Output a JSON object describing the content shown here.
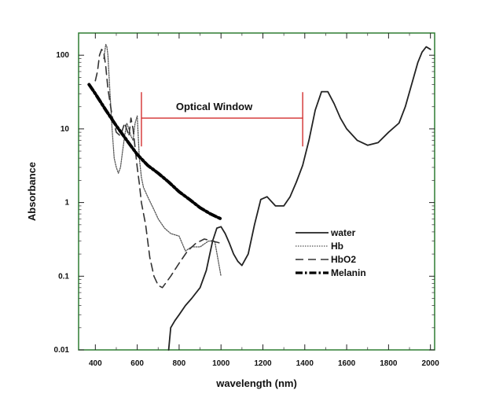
{
  "chart_data": {
    "type": "line",
    "xlabel": "wavelength (nm)",
    "ylabel": "Absorbance",
    "x_scale": "linear",
    "y_scale": "log",
    "xlim": [
      320,
      2020
    ],
    "ylim": [
      0.01,
      200
    ],
    "x_ticks": [
      400,
      600,
      800,
      1000,
      1200,
      1400,
      1600,
      1800,
      2000
    ],
    "y_ticks": [
      0.01,
      0.1,
      1,
      10,
      100
    ],
    "y_tick_labels": [
      "0.01",
      "0.1",
      "1",
      "10",
      "100"
    ],
    "grid": false,
    "frame_color": "#2e7d32",
    "legend_position": "center-right",
    "annotation": {
      "text": "Optical Window",
      "x_start": 620,
      "x_end": 1390,
      "y_level": 14,
      "color": "#d32f2f"
    },
    "series": [
      {
        "name": "water",
        "style": "solid",
        "color": "#222222",
        "x": [
          750,
          760,
          780,
          800,
          830,
          860,
          900,
          930,
          960,
          980,
          1000,
          1020,
          1040,
          1060,
          1080,
          1100,
          1130,
          1160,
          1190,
          1220,
          1260,
          1300,
          1330,
          1360,
          1390,
          1420,
          1450,
          1480,
          1510,
          1540,
          1570,
          1600,
          1650,
          1700,
          1750,
          1800,
          1850,
          1880,
          1910,
          1940,
          1960,
          1980,
          2000
        ],
        "y": [
          0.01,
          0.02,
          0.025,
          0.03,
          0.04,
          0.05,
          0.07,
          0.12,
          0.3,
          0.45,
          0.47,
          0.38,
          0.28,
          0.2,
          0.16,
          0.14,
          0.2,
          0.5,
          1.1,
          1.2,
          0.9,
          0.9,
          1.2,
          1.9,
          3.2,
          7,
          18,
          32,
          32,
          22,
          14,
          10,
          7,
          6,
          6.5,
          9,
          12,
          20,
          40,
          80,
          110,
          130,
          120
        ]
      },
      {
        "name": "Hb",
        "style": "dotted",
        "color": "#555555",
        "x": [
          440,
          450,
          455,
          460,
          470,
          480,
          490,
          500,
          510,
          520,
          530,
          540,
          550,
          560,
          570,
          580,
          590,
          600,
          610,
          620,
          630,
          650,
          680,
          700,
          730,
          760,
          800,
          830,
          860,
          900,
          940,
          970,
          1000
        ],
        "y": [
          90,
          140,
          130,
          100,
          30,
          10,
          4,
          3,
          2.5,
          3,
          5,
          8,
          12,
          10,
          8,
          7,
          12,
          15,
          4,
          2.2,
          1.6,
          1.2,
          0.8,
          0.6,
          0.45,
          0.38,
          0.35,
          0.22,
          0.25,
          0.25,
          0.3,
          0.3,
          0.1
        ]
      },
      {
        "name": "HbO2",
        "style": "dashed",
        "color": "#333333",
        "x": [
          400,
          410,
          420,
          430,
          440,
          450,
          460,
          480,
          500,
          520,
          540,
          560,
          570,
          580,
          600,
          610,
          620,
          640,
          660,
          680,
          700,
          720,
          760,
          800,
          840,
          880,
          920,
          960,
          1000
        ],
        "y": [
          45,
          60,
          100,
          120,
          110,
          70,
          35,
          15,
          9,
          8,
          12,
          8,
          14,
          10,
          3,
          1.8,
          1,
          0.5,
          0.18,
          0.1,
          0.075,
          0.07,
          0.1,
          0.15,
          0.22,
          0.28,
          0.32,
          0.3,
          0.28
        ]
      },
      {
        "name": "Melanin",
        "style": "dashdot",
        "color": "#000000",
        "x": [
          370,
          400,
          450,
          500,
          550,
          600,
          650,
          700,
          750,
          800,
          850,
          900,
          950,
          1000
        ],
        "y": [
          40,
          30,
          18,
          11,
          7,
          4.5,
          3.2,
          2.5,
          1.9,
          1.4,
          1.1,
          0.85,
          0.7,
          0.6
        ]
      }
    ]
  }
}
